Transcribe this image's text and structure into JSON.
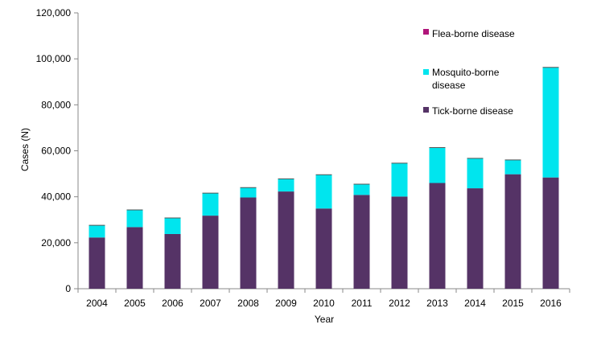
{
  "chart_data": {
    "type": "bar",
    "stacked": true,
    "title": "",
    "xlabel": "Year",
    "ylabel": "Cases (N)",
    "ylim": [
      0,
      120000
    ],
    "y_ticks": [
      0,
      20000,
      40000,
      60000,
      80000,
      100000,
      120000
    ],
    "y_tick_labels": [
      "0",
      "20,000",
      "40,000",
      "60,000",
      "80,000",
      "100,000",
      "120,000"
    ],
    "grid": false,
    "legend_position": "top-right",
    "categories": [
      "2004",
      "2005",
      "2006",
      "2007",
      "2008",
      "2009",
      "2010",
      "2011",
      "2012",
      "2013",
      "2014",
      "2015",
      "2016"
    ],
    "series": [
      {
        "name": "Tick-borne disease",
        "color": "#553366",
        "values": [
          22300,
          26800,
          23800,
          31800,
          39700,
          42300,
          34900,
          40800,
          40100,
          46000,
          43700,
          49800,
          48400
        ]
      },
      {
        "name": "Mosquito-borne disease",
        "color": "#00e5ee",
        "values": [
          5300,
          7500,
          7000,
          9800,
          4300,
          5500,
          14700,
          4700,
          14500,
          15400,
          13000,
          6200,
          47900
        ]
      },
      {
        "name": "Flea-borne disease",
        "color": "#b0157a",
        "values": [
          0,
          0,
          0,
          0,
          0,
          0,
          0,
          0,
          0,
          0,
          0,
          0,
          0
        ]
      }
    ],
    "legend": [
      {
        "label": "Flea-borne disease",
        "color": "#b0157a"
      },
      {
        "label": "Mosquito-borne disease",
        "color": "#00e5ee"
      },
      {
        "label": "Tick-borne disease",
        "color": "#553366"
      }
    ]
  }
}
